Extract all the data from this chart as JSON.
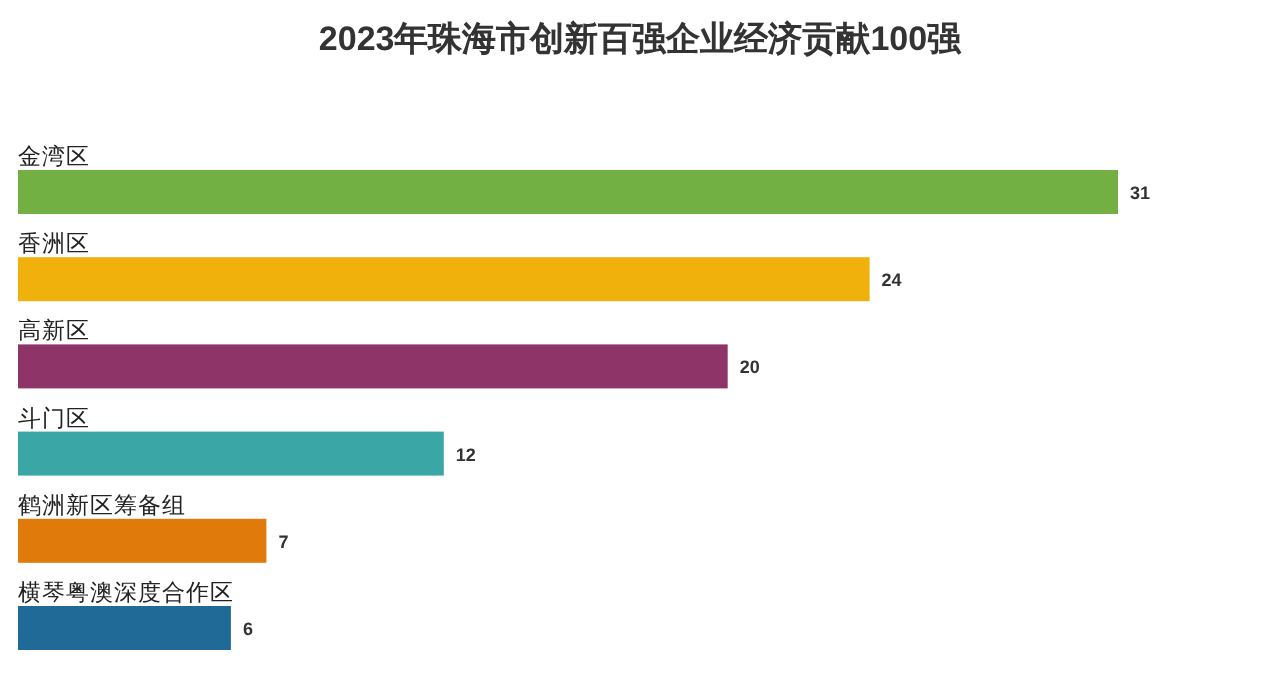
{
  "chart_data": {
    "type": "bar",
    "orientation": "horizontal",
    "title": "2023年珠海市创新百强企业经济贡献100强",
    "categories": [
      "金湾区",
      "香洲区",
      "高新区",
      "斗门区",
      "鹤洲新区筹备组",
      "横琴粤澳深度合作区"
    ],
    "values": [
      31,
      24,
      20,
      12,
      7,
      6
    ],
    "colors": [
      "#72b043",
      "#f0b10d",
      "#8e3468",
      "#3aa6a6",
      "#e07b0b",
      "#1f6a96"
    ],
    "data_labels": true
  }
}
